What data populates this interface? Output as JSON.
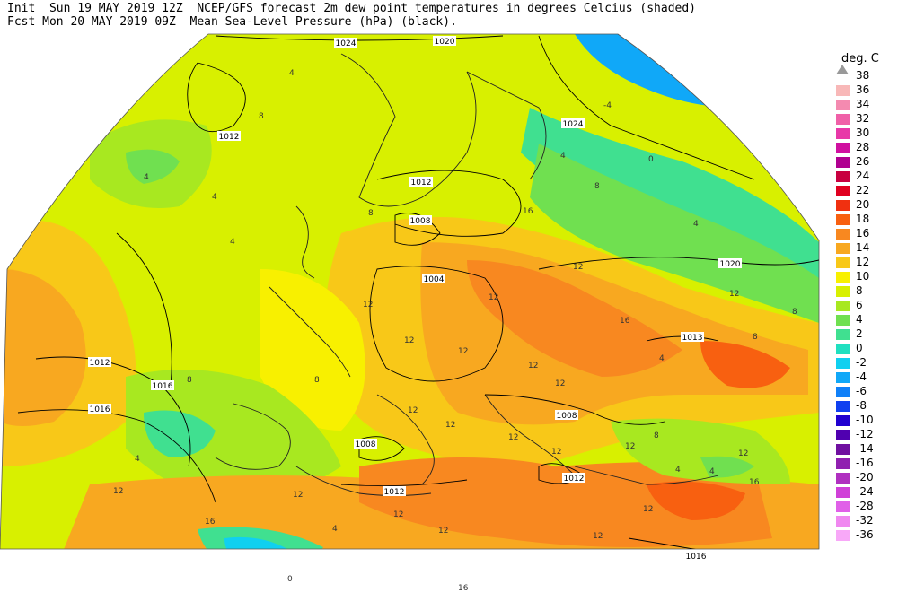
{
  "header": {
    "line1": "Init  Sun 19 MAY 2019 12Z  NCEP/GFS forecast 2m dew point temperatures in degrees Celcius (shaded)",
    "line2": "Fcst Mon 20 MAY 2019 09Z  Mean Sea-Level Pressure (hPa) (black)."
  },
  "legend": {
    "title": "deg. C",
    "top_label": "38",
    "levels": [
      {
        "label": "36",
        "color": "#f8b8b8"
      },
      {
        "label": "34",
        "color": "#f48ab0"
      },
      {
        "label": "32",
        "color": "#f060a8"
      },
      {
        "label": "30",
        "color": "#e838a8"
      },
      {
        "label": "28",
        "color": "#d010a0"
      },
      {
        "label": "26",
        "color": "#b00090"
      },
      {
        "label": "24",
        "color": "#c80040"
      },
      {
        "label": "22",
        "color": "#e00020"
      },
      {
        "label": "20",
        "color": "#f03010"
      },
      {
        "label": "18",
        "color": "#f86010"
      },
      {
        "label": "16",
        "color": "#f88820"
      },
      {
        "label": "14",
        "color": "#f8a820"
      },
      {
        "label": "12",
        "color": "#f8c818"
      },
      {
        "label": "10",
        "color": "#f8f000"
      },
      {
        "label": "8",
        "color": "#d8f000"
      },
      {
        "label": "6",
        "color": "#a8e820"
      },
      {
        "label": "4",
        "color": "#70e050"
      },
      {
        "label": "2",
        "color": "#40e090"
      },
      {
        "label": "0",
        "color": "#20e0c0"
      },
      {
        "label": "-2",
        "color": "#10d0f0"
      },
      {
        "label": "-4",
        "color": "#10a8f8"
      },
      {
        "label": "-6",
        "color": "#1080f8"
      },
      {
        "label": "-8",
        "color": "#1040f0"
      },
      {
        "label": "-10",
        "color": "#2000d0"
      },
      {
        "label": "-12",
        "color": "#5000b0"
      },
      {
        "label": "-14",
        "color": "#7010a0"
      },
      {
        "label": "-16",
        "color": "#9020b0"
      },
      {
        "label": "-20",
        "color": "#b030c0"
      },
      {
        "label": "-24",
        "color": "#d040d8"
      },
      {
        "label": "-28",
        "color": "#e060e8"
      },
      {
        "label": "-32",
        "color": "#f088f0"
      },
      {
        "label": "-36",
        "color": "#f8a8f8"
      }
    ]
  },
  "isobar_labels": [
    "1024",
    "1020",
    "1024",
    "1012",
    "1012",
    "1008",
    "1004",
    "1020",
    "1013",
    "1012",
    "1016",
    "1016",
    "1008",
    "1008",
    "1012",
    "1012",
    "1016"
  ],
  "dewpoint_labels": [
    "4",
    "4",
    "8",
    "4",
    "4",
    "8",
    "4",
    "0",
    "4",
    "16",
    "12",
    "12",
    "12",
    "8",
    "12",
    "12",
    "12",
    "16",
    "12",
    "12",
    "8",
    "8",
    "12",
    "12",
    "8",
    "4",
    "12",
    "12",
    "4",
    "16",
    "12",
    "12",
    "8",
    "12",
    "12",
    "12",
    "12",
    "8",
    "4",
    "-4",
    "16",
    "12",
    "0",
    "16",
    "4",
    "12",
    "4"
  ]
}
